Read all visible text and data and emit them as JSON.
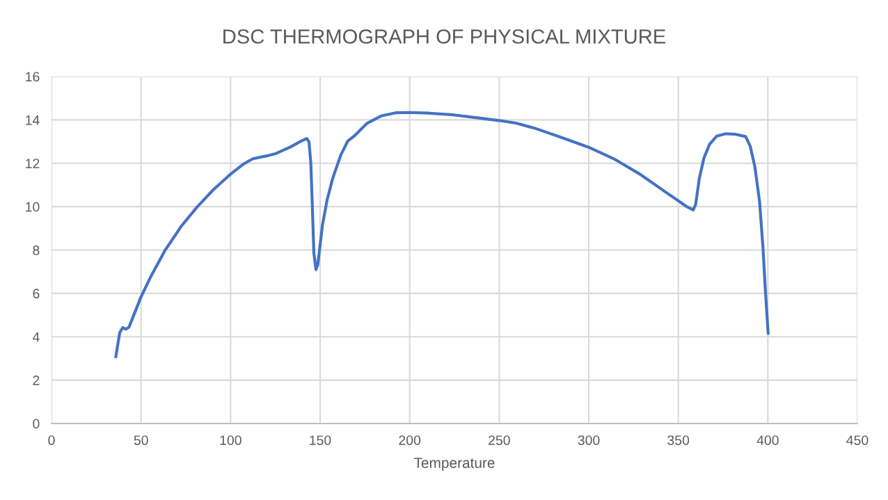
{
  "chart_data": {
    "type": "line",
    "title": "DSC THERMOGRAPH OF PHYSICAL MIXTURE",
    "xlabel": "Temperature",
    "xlim": [
      0,
      450
    ],
    "xticks": [
      0,
      50,
      100,
      150,
      200,
      250,
      300,
      350,
      400,
      450
    ],
    "ylim": [
      0,
      16
    ],
    "yticks": [
      0,
      2,
      4,
      6,
      8,
      10,
      12,
      14,
      16
    ],
    "grid": true,
    "marker": "none",
    "line_style": "solid",
    "series": [
      {
        "color": "#4472c4",
        "x": [
          35.9,
          38.1,
          39.8,
          41.6,
          43.3,
          45.9,
          50,
          55.6,
          63.3,
          72.4,
          81.4,
          90.5,
          99.9,
          107.3,
          112.5,
          120.2,
          125.4,
          133.2,
          139.6,
          142.5,
          143.8,
          144.8,
          145.7,
          146.5,
          147.7,
          148.7,
          151.3,
          153.9,
          156.7,
          157.8,
          161.6,
          165.5,
          169.1,
          176.0,
          184.4,
          192.7,
          199.9,
          210.7,
          224.6,
          238.5,
          249.9,
          259.3,
          270.4,
          284.3,
          299.9,
          314.8,
          328.7,
          342.6,
          350,
          354.5,
          358.4,
          359.7,
          361.7,
          364.3,
          367.5,
          371.4,
          376.6,
          381.8,
          387.6,
          390.2,
          392.8,
          395.4,
          397.3,
          398.6,
          400.2
        ],
        "values": [
          3.07,
          4.19,
          4.42,
          4.35,
          4.45,
          4.99,
          5.84,
          6.8,
          7.97,
          9.09,
          9.99,
          10.79,
          11.49,
          11.97,
          12.21,
          12.34,
          12.45,
          12.74,
          13.03,
          13.14,
          12.98,
          12.02,
          9.89,
          7.86,
          7.1,
          7.33,
          9.14,
          10.31,
          11.2,
          11.49,
          12.39,
          13.03,
          13.26,
          13.83,
          14.19,
          14.33,
          14.34,
          14.31,
          14.23,
          14.09,
          13.97,
          13.85,
          13.6,
          13.2,
          12.74,
          12.17,
          11.49,
          10.69,
          10.27,
          10.01,
          9.85,
          10.11,
          11.28,
          12.24,
          12.88,
          13.25,
          13.36,
          13.34,
          13.23,
          12.78,
          11.82,
          10.22,
          8.09,
          6.17,
          4.15
        ]
      }
    ]
  }
}
